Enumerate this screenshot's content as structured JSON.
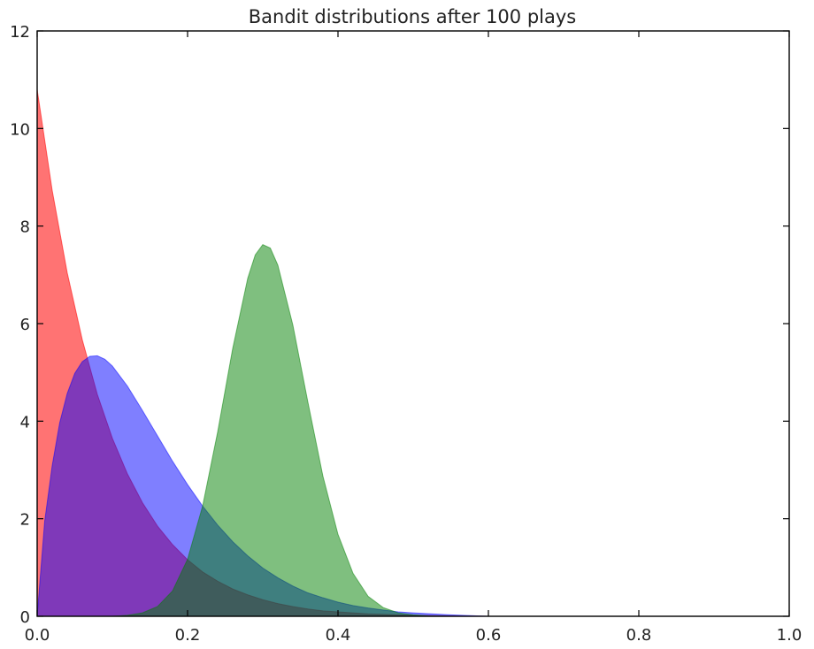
{
  "chart_data": {
    "type": "area",
    "title": "Bandit distributions after 100 plays",
    "xlabel": "",
    "ylabel": "",
    "xlim": [
      0.0,
      1.0
    ],
    "ylim": [
      0,
      12
    ],
    "x_ticks": [
      "0.0",
      "0.2",
      "0.4",
      "0.6",
      "0.8",
      "1.0"
    ],
    "y_ticks": [
      "0",
      "2",
      "4",
      "6",
      "8",
      "10",
      "12"
    ],
    "grid": false,
    "legend": "none",
    "series": [
      {
        "color": "#ff0000",
        "opacity": 0.55,
        "x": [
          0.0,
          0.02,
          0.04,
          0.06,
          0.08,
          0.1,
          0.12,
          0.14,
          0.16,
          0.18,
          0.2,
          0.22,
          0.24,
          0.26,
          0.28,
          0.3,
          0.32,
          0.34,
          0.36,
          0.38,
          0.4,
          0.42,
          0.44,
          0.46,
          0.48,
          0.5,
          0.55,
          0.6
        ],
        "y": [
          10.8,
          8.73,
          7.04,
          5.67,
          4.55,
          3.65,
          2.92,
          2.33,
          1.85,
          1.47,
          1.16,
          0.91,
          0.72,
          0.56,
          0.44,
          0.34,
          0.26,
          0.2,
          0.15,
          0.11,
          0.09,
          0.07,
          0.05,
          0.04,
          0.03,
          0.02,
          0.01,
          0.0
        ]
      },
      {
        "color": "#0000ff",
        "opacity": 0.5,
        "x": [
          0.0,
          0.01,
          0.02,
          0.03,
          0.04,
          0.05,
          0.06,
          0.07,
          0.08,
          0.09,
          0.1,
          0.12,
          0.14,
          0.16,
          0.18,
          0.2,
          0.22,
          0.24,
          0.26,
          0.28,
          0.3,
          0.32,
          0.34,
          0.36,
          0.38,
          0.4,
          0.42,
          0.44,
          0.46,
          0.48,
          0.5,
          0.55,
          0.6
        ],
        "y": [
          0.0,
          1.95,
          3.09,
          3.97,
          4.57,
          4.98,
          5.22,
          5.33,
          5.34,
          5.27,
          5.13,
          4.72,
          4.22,
          3.7,
          3.18,
          2.7,
          2.26,
          1.87,
          1.53,
          1.24,
          0.99,
          0.79,
          0.62,
          0.48,
          0.38,
          0.29,
          0.22,
          0.17,
          0.13,
          0.09,
          0.07,
          0.03,
          0.0
        ]
      },
      {
        "color": "#008000",
        "opacity": 0.5,
        "x": [
          0.1,
          0.12,
          0.14,
          0.16,
          0.18,
          0.2,
          0.22,
          0.24,
          0.26,
          0.28,
          0.29,
          0.3,
          0.31,
          0.32,
          0.34,
          0.36,
          0.38,
          0.4,
          0.42,
          0.44,
          0.46,
          0.48,
          0.5,
          0.52,
          0.55
        ],
        "y": [
          0.0,
          0.02,
          0.07,
          0.2,
          0.52,
          1.17,
          2.26,
          3.78,
          5.49,
          6.93,
          7.41,
          7.62,
          7.55,
          7.2,
          5.97,
          4.39,
          2.87,
          1.68,
          0.88,
          0.41,
          0.18,
          0.07,
          0.03,
          0.01,
          0.0
        ]
      }
    ]
  }
}
